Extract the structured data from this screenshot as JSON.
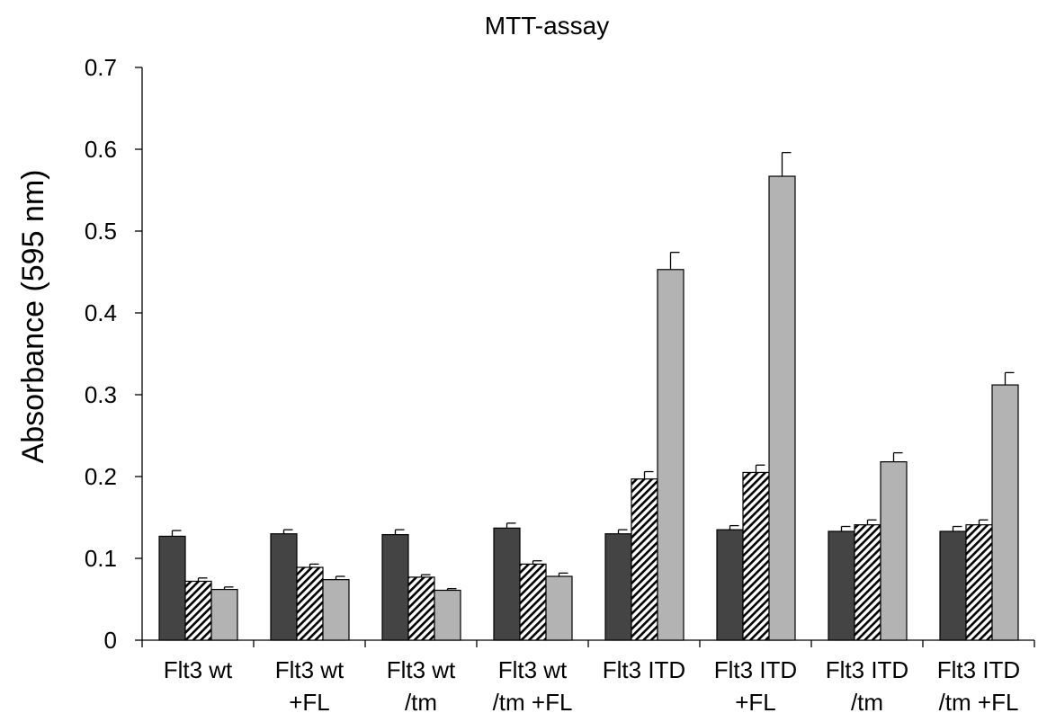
{
  "chart_data": {
    "type": "bar",
    "title": "MTT-assay",
    "xlabel": "",
    "ylabel": "Absorbance (595 nm)",
    "ylim": [
      0,
      0.7
    ],
    "yticks": [
      "0",
      "0.1",
      "0.2",
      "0.3",
      "0.4",
      "0.5",
      "0.6",
      "0.7"
    ],
    "grid": false,
    "legend": "none",
    "categories": [
      [
        "Flt3 wt",
        ""
      ],
      [
        "Flt3 wt",
        "+FL"
      ],
      [
        "Flt3 wt",
        "/tm"
      ],
      [
        "Flt3 wt",
        "/tm +FL"
      ],
      [
        "Flt3 ITD",
        ""
      ],
      [
        "Flt3 ITD",
        "+FL"
      ],
      [
        "Flt3 ITD",
        "/tm"
      ],
      [
        "Flt3 ITD",
        "/tm +FL"
      ]
    ],
    "series": [
      {
        "color": "#444444",
        "pattern": "solid",
        "values": [
          0.127,
          0.13,
          0.129,
          0.137,
          0.13,
          0.135,
          0.133,
          0.133
        ],
        "errors": [
          0.007,
          0.005,
          0.006,
          0.006,
          0.005,
          0.005,
          0.006,
          0.006
        ]
      },
      {
        "color": "#ffffff",
        "pattern": "hatched",
        "values": [
          0.072,
          0.089,
          0.077,
          0.093,
          0.197,
          0.205,
          0.141,
          0.141
        ],
        "errors": [
          0.004,
          0.004,
          0.003,
          0.004,
          0.009,
          0.009,
          0.006,
          0.006
        ]
      },
      {
        "color": "#b3b3b3",
        "pattern": "solid",
        "values": [
          0.062,
          0.074,
          0.061,
          0.078,
          0.453,
          0.567,
          0.218,
          0.312
        ],
        "errors": [
          0.003,
          0.004,
          0.002,
          0.004,
          0.021,
          0.029,
          0.011,
          0.015
        ]
      }
    ]
  }
}
